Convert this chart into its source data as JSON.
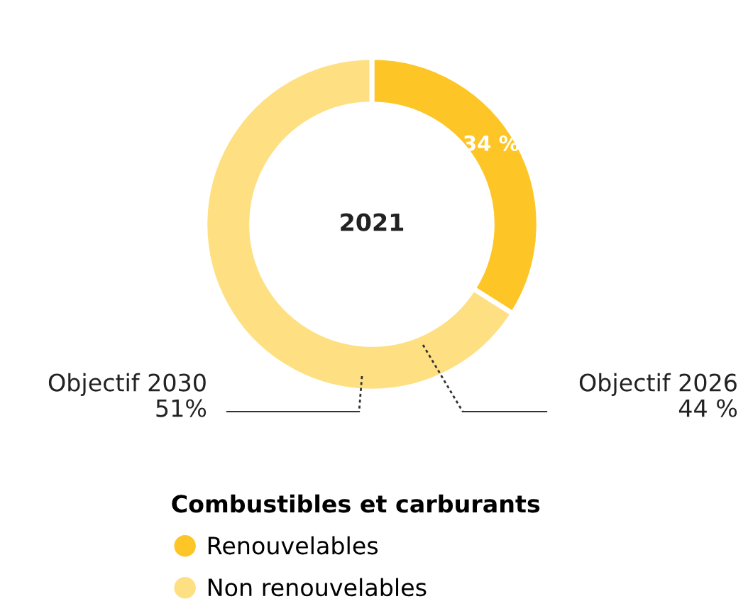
{
  "chart_data": {
    "type": "donut",
    "title": "2021",
    "legend_title": "Combustibles et carburants",
    "categories": [
      "Renouvelables",
      "Non renouvelables"
    ],
    "values": [
      34,
      66
    ],
    "colors": [
      "#fdc626",
      "#fee083"
    ],
    "value_labels": [
      "34 %",
      null
    ],
    "annotations": [
      "Objectif 2026\n44 %",
      "Objectif 2030\n51%"
    ],
    "legend": "bottom"
  }
}
